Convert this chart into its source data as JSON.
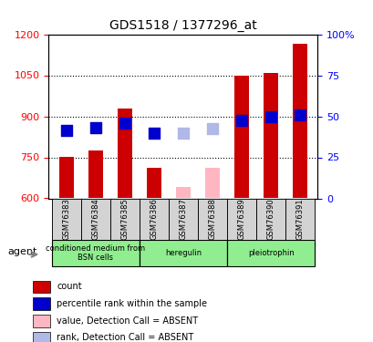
{
  "title": "GDS1518 / 1377296_at",
  "samples": [
    "GSM76383",
    "GSM76384",
    "GSM76385",
    "GSM76386",
    "GSM76387",
    "GSM76388",
    "GSM76389",
    "GSM76390",
    "GSM76391"
  ],
  "bar_values": [
    750,
    775,
    930,
    710,
    null,
    null,
    1050,
    1060,
    1165
  ],
  "bar_values_absent": [
    null,
    null,
    null,
    null,
    640,
    710,
    null,
    null,
    null
  ],
  "rank_values": [
    850,
    860,
    875,
    840,
    840,
    855,
    885,
    900,
    905
  ],
  "rank_values_absent": [
    null,
    null,
    null,
    null,
    840,
    855,
    null,
    null,
    null
  ],
  "bar_color_present": "#cc0000",
  "bar_color_absent": "#ffb6c1",
  "rank_color_present": "#0000cc",
  "rank_color_absent": "#b0b8e8",
  "ylim_left": [
    600,
    1200
  ],
  "ylim_right": [
    0,
    100
  ],
  "yticks_left": [
    600,
    750,
    900,
    1050,
    1200
  ],
  "yticks_right": [
    0,
    25,
    50,
    75,
    100
  ],
  "groups": [
    {
      "label": "conditioned medium from\nBSN cells",
      "start": 0,
      "end": 3,
      "color": "#90ee90"
    },
    {
      "label": "heregulin",
      "start": 3,
      "end": 6,
      "color": "#90ee90"
    },
    {
      "label": "pleiotrophin",
      "start": 6,
      "end": 9,
      "color": "#90ee90"
    }
  ],
  "agent_label": "agent",
  "legend_items": [
    {
      "label": "count",
      "color": "#cc0000",
      "alpha": 1.0
    },
    {
      "label": "percentile rank within the sample",
      "color": "#0000cc",
      "alpha": 1.0
    },
    {
      "label": "value, Detection Call = ABSENT",
      "color": "#ffb6c1",
      "alpha": 1.0
    },
    {
      "label": "rank, Detection Call = ABSENT",
      "color": "#b0b8e8",
      "alpha": 1.0
    }
  ],
  "bar_width": 0.5,
  "rank_marker_size": 80,
  "grid_color": "#000000",
  "background_color": "#ffffff"
}
